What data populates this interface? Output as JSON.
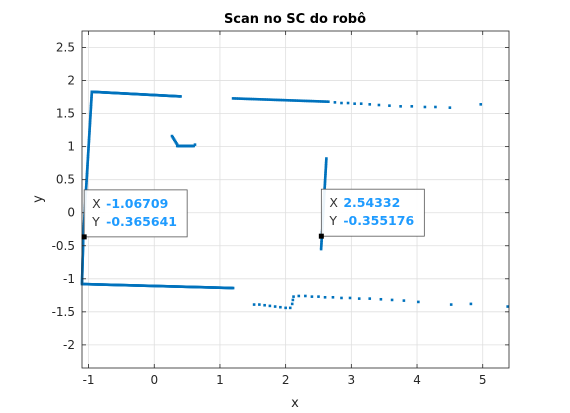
{
  "chart_data": {
    "type": "scatter",
    "title": "Scan no SC do robô",
    "xlabel": "x",
    "ylabel": "y",
    "xlim": [
      -1.1,
      5.4
    ],
    "ylim": [
      -2.35,
      2.75
    ],
    "xticks": [
      -1,
      0,
      1,
      2,
      3,
      4,
      5
    ],
    "yticks": [
      -2,
      -1.5,
      -1,
      -0.5,
      0,
      0.5,
      1,
      1.5,
      2,
      2.5
    ],
    "grid": true,
    "colors": {
      "points": "#0072bd",
      "tip_value": "#1e9bff",
      "grid": "#dfdfdf"
    },
    "segments": [
      {
        "x": [
          -0.95,
          0.4
        ],
        "y": [
          1.83,
          1.76
        ],
        "n": 110
      },
      {
        "x": [
          -1.08,
          -0.95
        ],
        "y": [
          -0.35,
          1.83
        ],
        "n": 90
      },
      {
        "x": [
          -1.1,
          -1.08
        ],
        "y": [
          -1.08,
          -0.35
        ],
        "n": 40
      },
      {
        "x": [
          -1.08,
          1.2
        ],
        "y": [
          -1.08,
          -1.14
        ],
        "n": 180
      },
      {
        "x": [
          0.27,
          0.35
        ],
        "y": [
          1.16,
          1.03
        ],
        "n": 8
      },
      {
        "x": [
          0.35,
          0.6
        ],
        "y": [
          1.01,
          1.01
        ],
        "n": 25
      },
      {
        "x": [
          2.54,
          2.62
        ],
        "y": [
          -0.55,
          0.82
        ],
        "n": 55
      },
      {
        "x": [
          1.2,
          2.65
        ],
        "y": [
          1.73,
          1.68
        ],
        "n": 55
      }
    ],
    "points": [
      {
        "x": 0.62,
        "y": 1.03
      },
      {
        "x": 2.75,
        "y": 1.67
      },
      {
        "x": 2.85,
        "y": 1.66
      },
      {
        "x": 2.95,
        "y": 1.66
      },
      {
        "x": 3.05,
        "y": 1.65
      },
      {
        "x": 3.15,
        "y": 1.65
      },
      {
        "x": 3.28,
        "y": 1.64
      },
      {
        "x": 3.42,
        "y": 1.63
      },
      {
        "x": 3.58,
        "y": 1.62
      },
      {
        "x": 3.75,
        "y": 1.61
      },
      {
        "x": 3.92,
        "y": 1.61
      },
      {
        "x": 4.12,
        "y": 1.6
      },
      {
        "x": 4.28,
        "y": 1.6
      },
      {
        "x": 4.5,
        "y": 1.59
      },
      {
        "x": 4.97,
        "y": 1.64
      },
      {
        "x": 1.52,
        "y": -1.39
      },
      {
        "x": 1.6,
        "y": -1.39
      },
      {
        "x": 1.68,
        "y": -1.4
      },
      {
        "x": 1.76,
        "y": -1.41
      },
      {
        "x": 1.84,
        "y": -1.42
      },
      {
        "x": 1.92,
        "y": -1.43
      },
      {
        "x": 2.0,
        "y": -1.44
      },
      {
        "x": 2.07,
        "y": -1.44
      },
      {
        "x": 2.1,
        "y": -1.38
      },
      {
        "x": 2.11,
        "y": -1.32
      },
      {
        "x": 2.12,
        "y": -1.27
      },
      {
        "x": 2.2,
        "y": -1.26
      },
      {
        "x": 2.3,
        "y": -1.26
      },
      {
        "x": 2.4,
        "y": -1.27
      },
      {
        "x": 2.5,
        "y": -1.27
      },
      {
        "x": 2.6,
        "y": -1.28
      },
      {
        "x": 2.72,
        "y": -1.28
      },
      {
        "x": 2.85,
        "y": -1.29
      },
      {
        "x": 2.98,
        "y": -1.29
      },
      {
        "x": 3.12,
        "y": -1.3
      },
      {
        "x": 3.28,
        "y": -1.3
      },
      {
        "x": 3.45,
        "y": -1.31
      },
      {
        "x": 3.62,
        "y": -1.32
      },
      {
        "x": 3.8,
        "y": -1.33
      },
      {
        "x": 4.02,
        "y": -1.35
      },
      {
        "x": 4.52,
        "y": -1.39
      },
      {
        "x": 4.82,
        "y": -1.38
      },
      {
        "x": 5.38,
        "y": -1.42
      }
    ],
    "datatips": [
      {
        "x_label": "X",
        "x_value": "-1.06709",
        "y_label": "Y",
        "y_value": "-0.365641",
        "x": -1.06709,
        "y": -0.365641
      },
      {
        "x_label": "X",
        "x_value": "2.54332",
        "y_label": "Y",
        "y_value": "-0.355176",
        "x": 2.54332,
        "y": -0.355176
      }
    ]
  }
}
